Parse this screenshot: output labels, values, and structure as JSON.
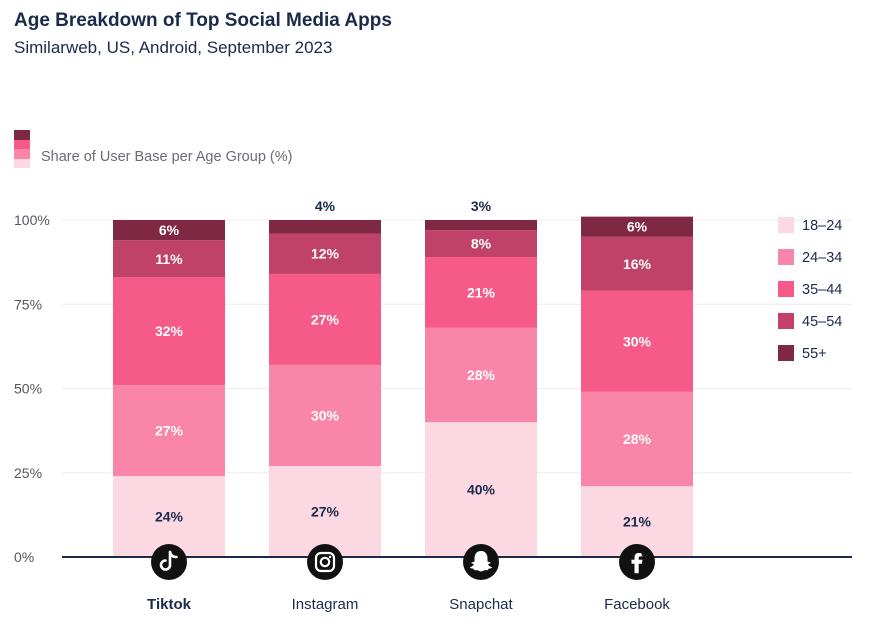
{
  "header": {
    "title": "Age Breakdown of Top Social Media Apps",
    "subtitle": "Similarweb, US, Android, September 2023"
  },
  "legend_caption": "Share of User Base per Age Group (%)",
  "chart_data": {
    "type": "bar",
    "stacked": true,
    "title": "Age Breakdown of Top Social Media Apps",
    "subtitle": "Similarweb, US, Android, September 2023",
    "ylabel": "Share of User Base per Age Group (%)",
    "ylim": [
      0,
      100
    ],
    "yticks": [
      0,
      25,
      50,
      75,
      100
    ],
    "ytick_labels": [
      "0%",
      "25%",
      "50%",
      "75%",
      "100%"
    ],
    "categories": [
      "Tiktok",
      "Instagram",
      "Snapchat",
      "Facebook"
    ],
    "category_icons": [
      "tiktok-icon",
      "instagram-icon",
      "snapchat-icon",
      "facebook-icon"
    ],
    "bold_category": "Tiktok",
    "legend_position": "right",
    "grid": true,
    "series": [
      {
        "name": "18-24",
        "color": "#fcd8e3",
        "label_color": "#1b2a4a",
        "values": [
          24,
          27,
          40,
          21
        ]
      },
      {
        "name": "24-34",
        "color": "#f986a8",
        "label_color": "#ffffff",
        "values": [
          27,
          30,
          28,
          28
        ]
      },
      {
        "name": "35-44",
        "color": "#f55a88",
        "label_color": "#ffffff",
        "values": [
          32,
          27,
          21,
          30
        ]
      },
      {
        "name": "45-54",
        "color": "#c04268",
        "label_color": "#ffffff",
        "values": [
          11,
          12,
          8,
          16
        ]
      },
      {
        "name": "55+",
        "color": "#7e2843",
        "label_color": "#ffffff",
        "values": [
          6,
          4,
          3,
          6
        ]
      }
    ],
    "legend_labels": [
      "18–24",
      "24–34",
      "35–44",
      "45–54",
      "55+"
    ]
  }
}
